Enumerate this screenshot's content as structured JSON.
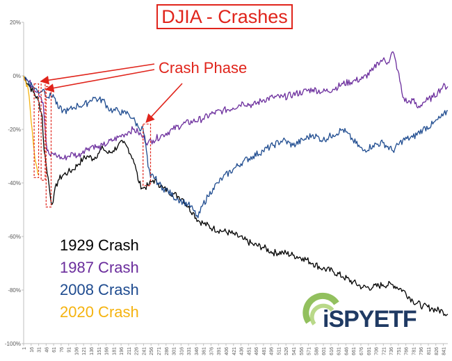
{
  "title": "DJIA - Crashes",
  "annotation": "Crash Phase",
  "logo_text": "iSPYETF",
  "colors": {
    "crash1929": "#000000",
    "crash1987": "#6a2c9c",
    "crash2008": "#1e4b8f",
    "crash2020": "#f5b30f",
    "annotation": "#e0241b",
    "axis": "#bfbfbf"
  },
  "legend": [
    {
      "label": "1929 Crash",
      "color": "#000000"
    },
    {
      "label": "1987 Crash",
      "color": "#6a2c9c"
    },
    {
      "label": "2008 Crash",
      "color": "#1e4b8f"
    },
    {
      "label": "2020 Crash",
      "color": "#f5b30f"
    }
  ],
  "chart_data": {
    "type": "line",
    "title": "DJIA - Crashes",
    "xlabel": "",
    "ylabel": "",
    "xlim": [
      1,
      850
    ],
    "ylim": [
      -100,
      20
    ],
    "y_ticks": [
      20,
      0,
      -20,
      -40,
      -60,
      -80,
      -100
    ],
    "y_tick_labels": [
      "20%",
      "0%",
      "-20%",
      "-40%",
      "-60%",
      "-80%",
      "-100%"
    ],
    "x_ticks": [
      1,
      16,
      31,
      46,
      61,
      76,
      91,
      106,
      121,
      136,
      151,
      166,
      181,
      196,
      211,
      226,
      241,
      256,
      271,
      286,
      301,
      316,
      331,
      346,
      361,
      376,
      391,
      406,
      421,
      436,
      451,
      466,
      481,
      496,
      511,
      526,
      541,
      556,
      571,
      586,
      601,
      616,
      631,
      646,
      661,
      676,
      691,
      706,
      721,
      736,
      751,
      766,
      781,
      796,
      811,
      826,
      841
    ],
    "grid": false,
    "series": [
      {
        "name": "1929 Crash",
        "x": [
          1,
          10,
          20,
          30,
          38,
          42,
          46,
          50,
          55,
          58,
          62,
          70,
          80,
          90,
          100,
          110,
          120,
          130,
          140,
          150,
          160,
          170,
          180,
          190,
          200,
          210,
          220,
          226,
          232,
          240,
          250,
          260,
          270,
          280,
          290,
          300,
          310,
          320,
          330,
          340,
          350,
          360,
          380,
          400,
          420,
          440,
          460,
          480,
          500,
          520,
          540,
          560,
          580,
          600,
          620,
          640,
          660,
          680,
          700,
          720,
          740,
          760,
          780,
          800,
          820,
          840,
          850
        ],
        "y": [
          0,
          -3,
          -6,
          -9,
          -15,
          -28,
          -33,
          -38,
          -46,
          -48,
          -44,
          -39,
          -37,
          -36,
          -35,
          -33,
          -31,
          -30,
          -31,
          -29,
          -27,
          -29,
          -28,
          -26,
          -25,
          -27,
          -31,
          -35,
          -40,
          -42,
          -41,
          -39,
          -40,
          -42,
          -43,
          -44,
          -45,
          -46,
          -49,
          -51,
          -54,
          -55,
          -57,
          -58,
          -59,
          -61,
          -63,
          -64,
          -66,
          -66,
          -67,
          -68,
          -70,
          -72,
          -73,
          -75,
          -77,
          -79,
          -79,
          -78,
          -78,
          -80,
          -84,
          -86,
          -87,
          -88,
          -89
        ]
      },
      {
        "name": "1987 Crash",
        "x": [
          1,
          10,
          20,
          30,
          36,
          40,
          44,
          48,
          55,
          60,
          70,
          80,
          90,
          100,
          110,
          120,
          130,
          140,
          150,
          160,
          170,
          180,
          190,
          200,
          210,
          220,
          230,
          240,
          250,
          260,
          280,
          300,
          320,
          340,
          360,
          380,
          400,
          420,
          440,
          460,
          480,
          500,
          520,
          540,
          560,
          580,
          600,
          620,
          640,
          660,
          680,
          700,
          710,
          720,
          730,
          740,
          750,
          760,
          770,
          780,
          790,
          800,
          810,
          820,
          830,
          840,
          850
        ],
        "y": [
          0,
          -2,
          -4,
          -6,
          -8,
          -10,
          -20,
          -28,
          -30,
          -29,
          -30,
          -31,
          -30,
          -29,
          -30,
          -28,
          -27,
          -26,
          -27,
          -26,
          -25,
          -24,
          -23,
          -22,
          -21,
          -20,
          -21,
          -23,
          -25,
          -24,
          -22,
          -20,
          -18,
          -17,
          -16,
          -14,
          -13,
          -12,
          -10,
          -11,
          -9,
          -8,
          -8,
          -7,
          -6,
          -5,
          -6,
          -5,
          -3,
          -2,
          -1,
          2,
          5,
          6,
          5,
          9,
          2,
          -8,
          -10,
          -9,
          -12,
          -10,
          -9,
          -8,
          -6,
          -4,
          -4
        ]
      },
      {
        "name": "2008 Crash",
        "x": [
          1,
          10,
          20,
          30,
          40,
          50,
          60,
          70,
          80,
          90,
          100,
          110,
          120,
          130,
          140,
          150,
          160,
          170,
          180,
          190,
          200,
          210,
          220,
          230,
          240,
          245,
          250,
          255,
          260,
          270,
          280,
          290,
          300,
          310,
          320,
          330,
          340,
          350,
          360,
          370,
          380,
          390,
          400,
          420,
          440,
          460,
          480,
          500,
          520,
          540,
          560,
          580,
          600,
          620,
          640,
          660,
          680,
          700,
          720,
          740,
          760,
          780,
          800,
          820,
          840,
          850
        ],
        "y": [
          0,
          -2,
          -4,
          -6,
          -5,
          -8,
          -7,
          -12,
          -13,
          -13,
          -12,
          -11,
          -11,
          -10,
          -8,
          -9,
          -9,
          -12,
          -13,
          -13,
          -14,
          -14,
          -16,
          -19,
          -20,
          -25,
          -34,
          -38,
          -37,
          -40,
          -42,
          -43,
          -45,
          -46,
          -47,
          -48,
          -50,
          -53,
          -48,
          -45,
          -42,
          -40,
          -38,
          -35,
          -32,
          -30,
          -28,
          -26,
          -24,
          -26,
          -24,
          -22,
          -24,
          -22,
          -20,
          -24,
          -28,
          -26,
          -25,
          -28,
          -24,
          -23,
          -20,
          -18,
          -15,
          -13
        ]
      },
      {
        "name": "2020 Crash",
        "x": [
          1,
          5,
          10,
          14,
          18,
          22,
          26,
          30
        ],
        "y": [
          0,
          -2,
          -5,
          -12,
          -20,
          -28,
          -33,
          -37
        ]
      }
    ]
  }
}
